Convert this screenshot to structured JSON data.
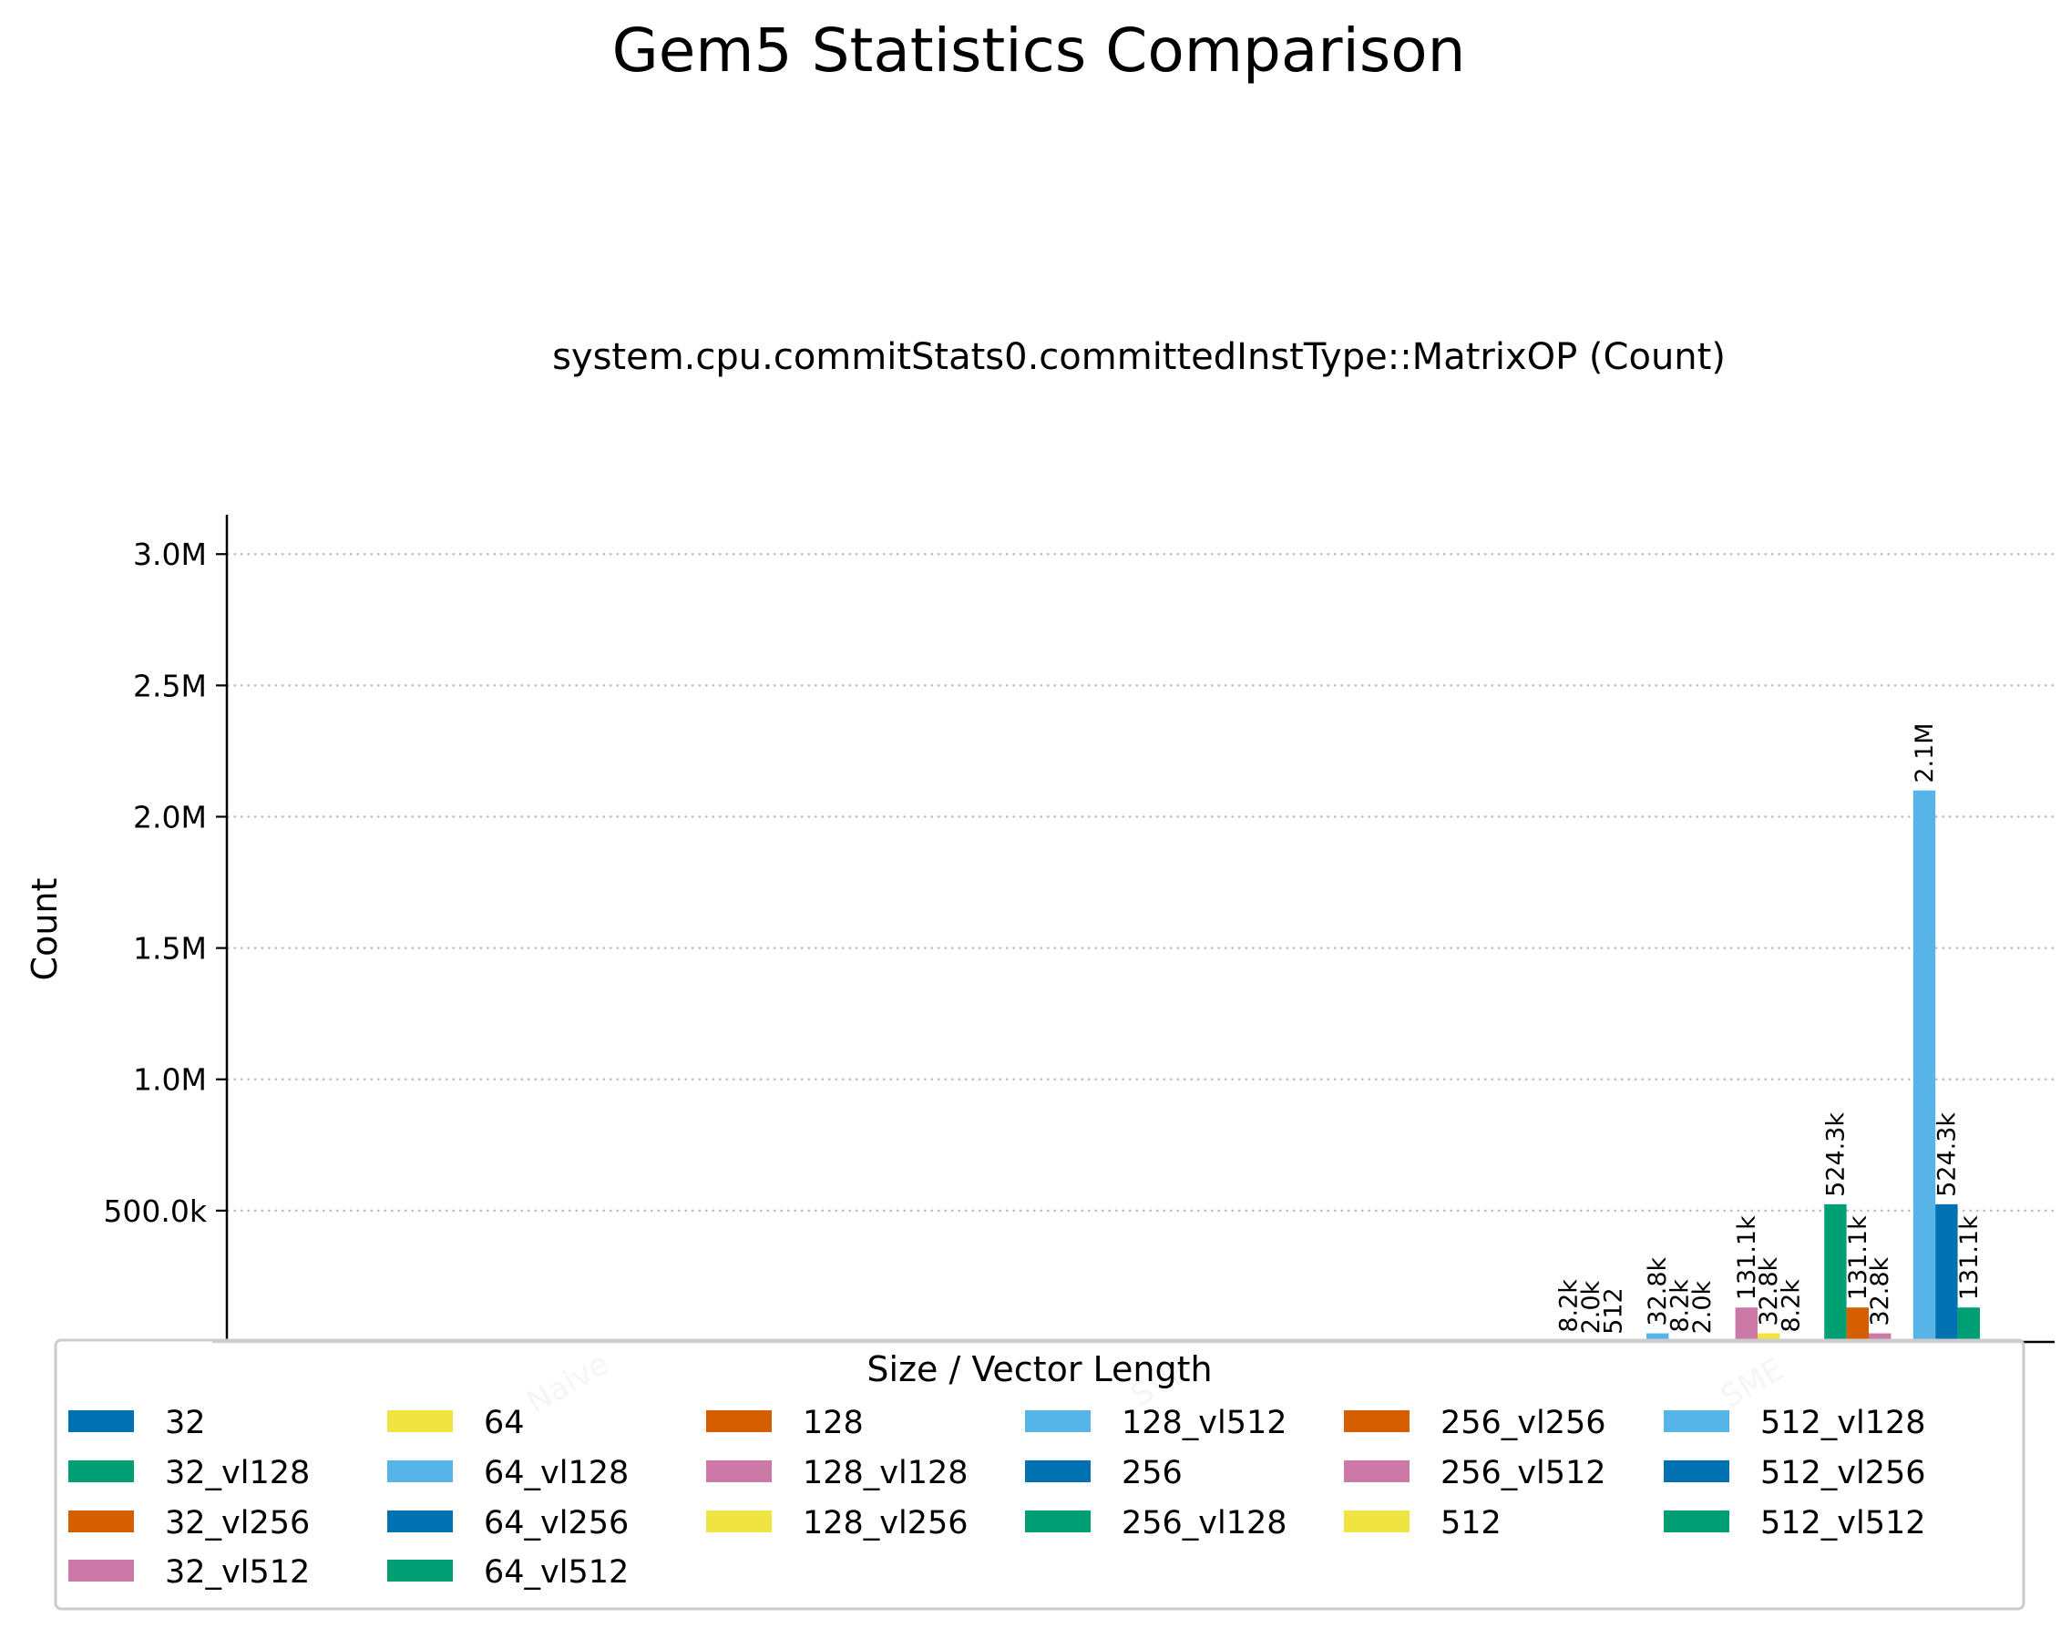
{
  "chart_data": {
    "type": "bar",
    "title": "Gem5 Statistics Comparison",
    "subtitle": "system.cpu.commitStats0.committedInstType::MatrixOP (Count)",
    "xlabel": "",
    "ylabel": "Count",
    "ylim": [
      0,
      3150000
    ],
    "yticks": [
      500000,
      1000000,
      1500000,
      2000000,
      2500000,
      3000000
    ],
    "ytick_labels": [
      "500.0k",
      "1.0M",
      "1.5M",
      "2.0M",
      "2.5M",
      "3.0M"
    ],
    "grid": "horizontal dotted",
    "legend_title": "Size / Vector Length",
    "legend_position": "bottom",
    "categories": [
      "Naive",
      "SVE",
      "SME"
    ],
    "category_labels": [
      "Naive",
      "SVE",
      "SME"
    ],
    "series": [
      {
        "name": "32",
        "color": "#0072b2",
        "values": [
          0,
          0,
          0
        ],
        "labels": [
          "",
          "",
          ""
        ]
      },
      {
        "name": "32_vl128",
        "color": "#009e73",
        "values": [
          0,
          0,
          8200
        ],
        "labels": [
          "",
          "",
          "8.2k"
        ]
      },
      {
        "name": "32_vl256",
        "color": "#d55e00",
        "values": [
          0,
          0,
          2000
        ],
        "labels": [
          "",
          "",
          "2.0k"
        ]
      },
      {
        "name": "32_vl512",
        "color": "#cc79a7",
        "values": [
          0,
          0,
          512
        ],
        "labels": [
          "",
          "",
          "512"
        ]
      },
      {
        "name": "64",
        "color": "#f0e442",
        "values": [
          0,
          0,
          0
        ],
        "labels": [
          "",
          "",
          ""
        ]
      },
      {
        "name": "64_vl128",
        "color": "#56b4e9",
        "values": [
          0,
          0,
          32800
        ],
        "labels": [
          "",
          "",
          "32.8k"
        ]
      },
      {
        "name": "64_vl256",
        "color": "#0072b2",
        "values": [
          0,
          0,
          8200
        ],
        "labels": [
          "",
          "",
          "8.2k"
        ]
      },
      {
        "name": "64_vl512",
        "color": "#009e73",
        "values": [
          0,
          0,
          2000
        ],
        "labels": [
          "",
          "",
          "2.0k"
        ]
      },
      {
        "name": "128",
        "color": "#d55e00",
        "values": [
          0,
          0,
          0
        ],
        "labels": [
          "",
          "",
          ""
        ]
      },
      {
        "name": "128_vl128",
        "color": "#cc79a7",
        "values": [
          0,
          0,
          131100
        ],
        "labels": [
          "",
          "",
          "131.1k"
        ]
      },
      {
        "name": "128_vl256",
        "color": "#f0e442",
        "values": [
          0,
          0,
          32800
        ],
        "labels": [
          "",
          "",
          "32.8k"
        ]
      },
      {
        "name": "128_vl512",
        "color": "#56b4e9",
        "values": [
          0,
          0,
          8200
        ],
        "labels": [
          "",
          "",
          "8.2k"
        ]
      },
      {
        "name": "256",
        "color": "#0072b2",
        "values": [
          0,
          0,
          0
        ],
        "labels": [
          "",
          "",
          ""
        ]
      },
      {
        "name": "256_vl128",
        "color": "#009e73",
        "values": [
          0,
          0,
          524300
        ],
        "labels": [
          "",
          "",
          "524.3k"
        ]
      },
      {
        "name": "256_vl256",
        "color": "#d55e00",
        "values": [
          0,
          0,
          131100
        ],
        "labels": [
          "",
          "",
          "131.1k"
        ]
      },
      {
        "name": "256_vl512",
        "color": "#cc79a7",
        "values": [
          0,
          0,
          32800
        ],
        "labels": [
          "",
          "",
          "32.8k"
        ]
      },
      {
        "name": "512",
        "color": "#f0e442",
        "values": [
          0,
          0,
          0
        ],
        "labels": [
          "",
          "",
          ""
        ]
      },
      {
        "name": "512_vl128",
        "color": "#56b4e9",
        "values": [
          0,
          0,
          2100000
        ],
        "labels": [
          "",
          "",
          "2.1M"
        ]
      },
      {
        "name": "512_vl256",
        "color": "#0072b2",
        "values": [
          0,
          0,
          524300
        ],
        "labels": [
          "",
          "",
          "524.3k"
        ]
      },
      {
        "name": "512_vl512",
        "color": "#009e73",
        "values": [
          0,
          0,
          131100
        ],
        "labels": [
          "",
          "",
          "131.1k"
        ]
      }
    ]
  }
}
